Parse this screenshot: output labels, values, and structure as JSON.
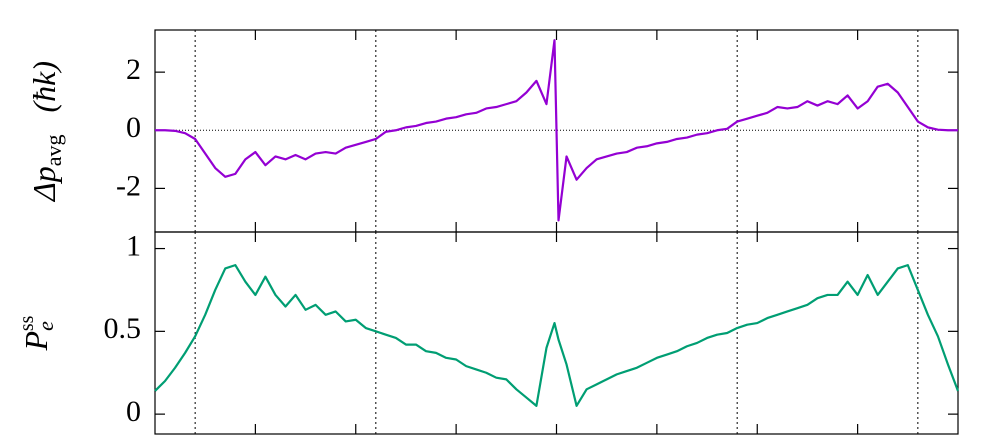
{
  "chart_data": [
    {
      "type": "line",
      "ylabel": "Δp",
      "ylabel_sub": "avg",
      "ylabel_unit": "(ħk)",
      "x": [
        -4,
        -3.9,
        -3.8,
        -3.7,
        -3.6,
        -3.5,
        -3.4,
        -3.3,
        -3.2,
        -3.1,
        -3,
        -2.9,
        -2.8,
        -2.7,
        -2.6,
        -2.5,
        -2.4,
        -2.3,
        -2.2,
        -2.1,
        -2,
        -1.9,
        -1.8,
        -1.7,
        -1.6,
        -1.5,
        -1.4,
        -1.3,
        -1.2,
        -1.1,
        -1,
        -0.9,
        -0.8,
        -0.7,
        -0.6,
        -0.5,
        -0.4,
        -0.3,
        -0.2,
        -0.1,
        -0.02,
        0.02,
        0.1,
        0.2,
        0.3,
        0.4,
        0.5,
        0.6,
        0.7,
        0.8,
        0.9,
        1,
        1.1,
        1.2,
        1.3,
        1.4,
        1.5,
        1.6,
        1.7,
        1.8,
        1.9,
        2,
        2.1,
        2.2,
        2.3,
        2.4,
        2.5,
        2.6,
        2.7,
        2.8,
        2.9,
        3,
        3.1,
        3.2,
        3.3,
        3.4,
        3.5,
        3.6,
        3.7,
        3.8,
        3.9,
        4
      ],
      "series": [
        {
          "color": "#9400d3",
          "values": [
            0,
            0,
            -0.02,
            -0.1,
            -0.3,
            -0.8,
            -1.3,
            -1.6,
            -1.5,
            -1.0,
            -0.75,
            -1.2,
            -0.9,
            -1.0,
            -0.85,
            -1.0,
            -0.8,
            -0.75,
            -0.8,
            -0.6,
            -0.5,
            -0.4,
            -0.3,
            -0.05,
            0,
            0.1,
            0.15,
            0.25,
            0.3,
            0.4,
            0.45,
            0.55,
            0.6,
            0.75,
            0.8,
            0.9,
            1.0,
            1.3,
            1.7,
            0.9,
            3.1,
            -3.1,
            -0.9,
            -1.7,
            -1.3,
            -1.0,
            -0.9,
            -0.8,
            -0.75,
            -0.6,
            -0.55,
            -0.45,
            -0.4,
            -0.3,
            -0.25,
            -0.15,
            -0.1,
            0,
            0.05,
            0.3,
            0.4,
            0.5,
            0.6,
            0.8,
            0.75,
            0.8,
            1.0,
            0.85,
            1.0,
            0.9,
            1.2,
            0.75,
            1.0,
            1.5,
            1.6,
            1.3,
            0.8,
            0.3,
            0.1,
            0.02,
            0,
            0
          ]
        }
      ],
      "xlim": [
        -4,
        4
      ],
      "xticks": [
        -3,
        -2,
        -1,
        0,
        1,
        2,
        3
      ],
      "ylim": [
        -3.5,
        3.45
      ],
      "yticks": [
        2,
        0,
        -2
      ],
      "vlines": [
        -3.6,
        -1.8,
        1.8,
        3.6
      ],
      "hline": 0
    },
    {
      "type": "line",
      "ylabel": "P",
      "ylabel_sub": "e",
      "ylabel_sup": "ss",
      "x": [
        -4,
        -3.9,
        -3.8,
        -3.7,
        -3.6,
        -3.5,
        -3.4,
        -3.3,
        -3.2,
        -3.1,
        -3,
        -2.9,
        -2.8,
        -2.7,
        -2.6,
        -2.5,
        -2.4,
        -2.3,
        -2.2,
        -2.1,
        -2,
        -1.9,
        -1.8,
        -1.7,
        -1.6,
        -1.5,
        -1.4,
        -1.3,
        -1.2,
        -1.1,
        -1,
        -0.9,
        -0.8,
        -0.7,
        -0.6,
        -0.5,
        -0.4,
        -0.3,
        -0.2,
        -0.1,
        -0.02,
        0.02,
        0.1,
        0.2,
        0.3,
        0.4,
        0.5,
        0.6,
        0.7,
        0.8,
        0.9,
        1,
        1.1,
        1.2,
        1.3,
        1.4,
        1.5,
        1.6,
        1.7,
        1.8,
        1.9,
        2,
        2.1,
        2.2,
        2.3,
        2.4,
        2.5,
        2.6,
        2.7,
        2.8,
        2.9,
        3,
        3.1,
        3.2,
        3.3,
        3.4,
        3.5,
        3.6,
        3.7,
        3.8,
        3.9,
        4
      ],
      "series": [
        {
          "color": "#009e73",
          "values": [
            0.14,
            0.2,
            0.28,
            0.37,
            0.47,
            0.6,
            0.75,
            0.88,
            0.9,
            0.8,
            0.72,
            0.83,
            0.72,
            0.65,
            0.72,
            0.63,
            0.66,
            0.6,
            0.62,
            0.56,
            0.57,
            0.52,
            0.5,
            0.48,
            0.46,
            0.42,
            0.42,
            0.38,
            0.37,
            0.34,
            0.33,
            0.29,
            0.27,
            0.25,
            0.22,
            0.21,
            0.15,
            0.1,
            0.05,
            0.4,
            0.55,
            0.45,
            0.3,
            0.05,
            0.15,
            0.18,
            0.21,
            0.24,
            0.26,
            0.28,
            0.31,
            0.34,
            0.36,
            0.38,
            0.41,
            0.43,
            0.46,
            0.48,
            0.49,
            0.52,
            0.54,
            0.55,
            0.58,
            0.6,
            0.62,
            0.64,
            0.66,
            0.7,
            0.72,
            0.72,
            0.8,
            0.72,
            0.84,
            0.72,
            0.8,
            0.88,
            0.9,
            0.75,
            0.6,
            0.47,
            0.3,
            0.14
          ]
        }
      ],
      "xlim": [
        -4,
        4
      ],
      "xticks": [
        -3,
        -2,
        -1,
        0,
        1,
        2,
        3
      ],
      "ylim": [
        -0.12,
        1.1
      ],
      "yticks": [
        1,
        0.5,
        0
      ],
      "vlines": [
        -3.6,
        -1.8,
        1.8,
        3.6
      ]
    }
  ]
}
